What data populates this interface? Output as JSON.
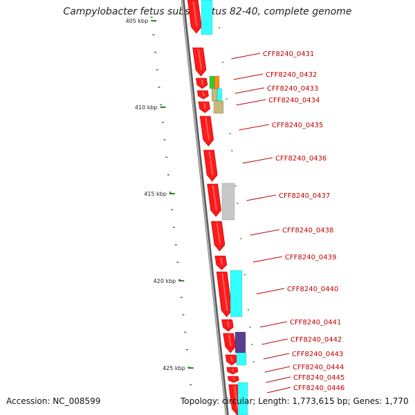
{
  "title": "Campylobacter fetus subsp. fetus 82-40, complete genome",
  "accession": "Accession: NC_008599",
  "summary": "Topology: circular; Length: 1,773,615 bp; Genes: 1,770",
  "scale_labels": [
    {
      "text": "405 kbp",
      "kb": 405
    },
    {
      "text": "410 kbp",
      "kb": 410
    },
    {
      "text": "415 kbp",
      "kb": 415
    },
    {
      "text": "420 kbp",
      "kb": 420
    },
    {
      "text": "425 kbp",
      "kb": 425
    }
  ],
  "genes": [
    {
      "name": "CFF8240_0431"
    },
    {
      "name": "CFF8240_0432"
    },
    {
      "name": "CFF8240_0433"
    },
    {
      "name": "CFF8240_0434"
    },
    {
      "name": "CFF8240_0435"
    },
    {
      "name": "CFF8240_0436"
    },
    {
      "name": "CFF8240_0437"
    },
    {
      "name": "CFF8240_0438"
    },
    {
      "name": "CFF8240_0439"
    },
    {
      "name": "CFF8240_0440"
    },
    {
      "name": "CFF8240_0441"
    },
    {
      "name": "CFF8240_0442"
    },
    {
      "name": "CFF8240_0443"
    },
    {
      "name": "CFF8240_0444"
    },
    {
      "name": "CFF8240_0445"
    },
    {
      "name": "CFF8240_0446"
    }
  ],
  "colors": {
    "cds": "#ff1a1a",
    "backbone": "#8a8a8a",
    "label": "#c00000",
    "tick": "#2e7d2e",
    "cyan": "#33ffff",
    "gray": "#c8c8c8",
    "purple": "#5a3f8f",
    "green": "#33cc33",
    "orange": "#ff8c1a",
    "tan": "#c8b87a"
  }
}
